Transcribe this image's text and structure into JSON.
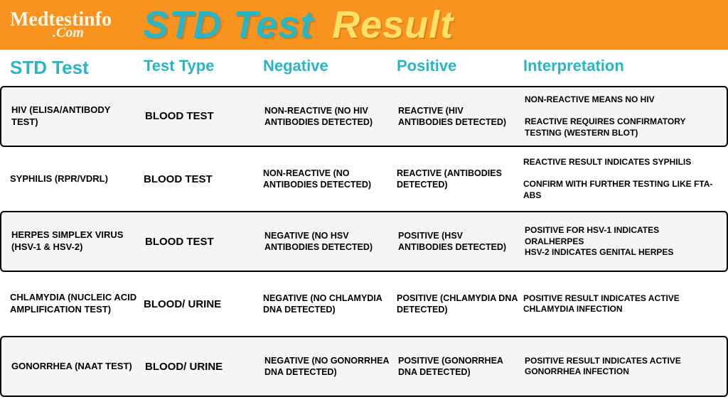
{
  "colors": {
    "header_bg": "#f7931e",
    "logo_color": "#fff7e6",
    "title_main": "#29b5c4",
    "title_accent": "#ffe066",
    "colhead_color": "#29b5c4",
    "row_alt_bg": "#f5f5f5",
    "text": "#000000"
  },
  "logo": {
    "main": "Medtestinfo",
    "sub": ".Com"
  },
  "title": {
    "part1": "STD Test",
    "part2": "Result"
  },
  "columns": [
    "STD Test",
    "Test Type",
    "Negative",
    "Positive",
    "Interpretation"
  ],
  "rows": [
    {
      "boxed": true,
      "alt": true,
      "name": "HIV (ELISA/ANTIBODY TEST)",
      "type": "BLOOD TEST",
      "negative": "NON-REACTIVE (NO HIV ANTIBODIES DETECTED)",
      "positive": "REACTIVE (HIV ANTIBODIES DETECTED)",
      "interpretation": "NON-REACTIVE MEANS NO HIV\n\nREACTIVE REQUIRES CONFIRMATORY TESTING (WESTERN BLOT)"
    },
    {
      "boxed": false,
      "alt": false,
      "name": "SYPHILIS (RPR/VDRL)",
      "type": "BLOOD TEST",
      "negative": "NON-REACTIVE (NO ANTIBODIES DETECTED)",
      "positive": "REACTIVE (ANTIBODIES DETECTED)",
      "interpretation": "REACTIVE RESULT INDICATES SYPHILIS\n\nCONFIRM WITH FURTHER TESTING LIKE FTA-ABS"
    },
    {
      "boxed": true,
      "alt": true,
      "name": "HERPES SIMPLEX VIRUS (HSV-1 & HSV-2)",
      "type": "BLOOD TEST",
      "negative": "NEGATIVE (NO HSV ANTIBODIES DETECTED)",
      "positive": "POSITIVE (HSV ANTIBODIES DETECTED)",
      "interpretation": "POSITIVE FOR HSV-1 INDICATES ORALHERPES\nHSV-2 INDICATES GENITAL HERPES"
    },
    {
      "boxed": false,
      "alt": false,
      "name": "CHLAMYDIA (NUCLEIC ACID AMPLIFICATION TEST)",
      "type": "BLOOD/ URINE",
      "negative": "NEGATIVE (NO CHLAMYDIA DNA DETECTED)",
      "positive": "POSITIVE (CHLAMYDIA DNA DETECTED)",
      "interpretation": "POSITIVE RESULT INDICATES ACTIVE CHLAMYDIA INFECTION"
    },
    {
      "boxed": true,
      "alt": true,
      "name": "GONORRHEA (NAAT TEST)",
      "type": "BLOOD/ URINE",
      "negative": "NEGATIVE (NO GONORRHEA DNA DETECTED)",
      "positive": "POSITIVE (GONORRHEA DNA DETECTED)",
      "interpretation": "POSITIVE RESULT INDICATES ACTIVE GONORRHEA INFECTION"
    }
  ]
}
